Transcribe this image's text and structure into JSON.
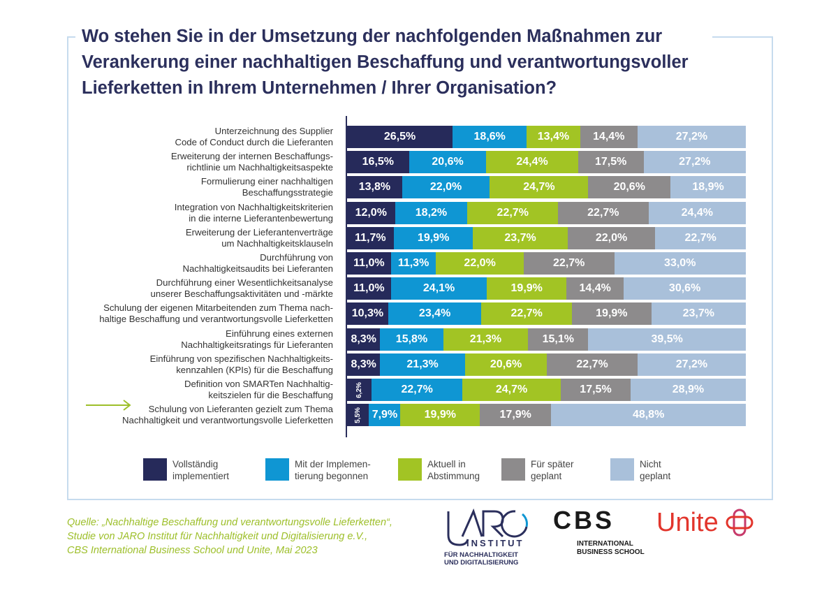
{
  "title": "Wo stehen Sie in der Umsetzung der nachfolgenden Maßnahmen zur Verankerung einer nachhaltigen Beschaffung und verantwortungsvoller Lieferketten in Ihrem Unternehmen / Ihrer Organisation?",
  "chart_data": {
    "type": "bar",
    "orientation": "horizontal-stacked-100",
    "categories": [
      "Unterzeichnung des Supplier\nCode of Conduct durch die Lieferanten",
      "Erweiterung der internen Beschaffungs-\nrichtlinie um Nachhaltigkeitsaspekte",
      "Formulierung einer nachhaltigen\nBeschaffungsstrategie",
      "Integration von Nachhaltigkeitskriterien\nin die interne Lieferantenbewertung",
      "Erweiterung der Lieferantenverträge\num Nachhaltigkeitsklauseln",
      "Durchführung von\nNachhaltigkeitsaudits bei Lieferanten",
      "Durchführung einer Wesentlichkeitsanalyse\nunserer Beschaffungsaktivitäten und -märkte",
      "Schulung der eigenen Mitarbeitenden zum Thema nach-\nhaltige Beschaffung und verantwortungsvolle Lieferketten",
      "Einführung eines externen\nNachhaltigkeitsratings für Lieferanten",
      "Einführung von spezifischen Nachhaltigkeits-\nkennzahlen (KPIs) für die Beschaffung",
      "Definition von SMARTen Nachhaltig-\nkeitszielen für die Beschaffung",
      "Schulung von Lieferanten gezielt zum Thema\nNachhaltigkeit und verantwortungsvolle Lieferketten"
    ],
    "series": [
      {
        "name": "Vollständig\nimplementiert",
        "color": "#262a5a",
        "values": [
          26.5,
          16.5,
          13.8,
          12.0,
          11.7,
          11.0,
          11.0,
          10.3,
          8.3,
          8.3,
          6.2,
          5.5
        ],
        "labels": [
          "26,5%",
          "16,5%",
          "13,8%",
          "12,0%",
          "11,7%",
          "11,0%",
          "11,0%",
          "10,3%",
          "8,3%",
          "8,3%",
          "6,2%",
          "5,5%"
        ]
      },
      {
        "name": "Mit der Implemen-\ntierung begonnen",
        "color": "#0f96d3",
        "values": [
          18.6,
          20.6,
          22.0,
          18.2,
          19.9,
          11.3,
          24.1,
          23.4,
          15.8,
          21.3,
          22.7,
          7.9
        ],
        "labels": [
          "18,6%",
          "20,6%",
          "22,0%",
          "18,2%",
          "19,9%",
          "11,3%",
          "24,1%",
          "23,4%",
          "15,8%",
          "21,3%",
          "22,7%",
          "7,9%"
        ]
      },
      {
        "name": "Aktuell in\nAbstimmung",
        "color": "#a2c424",
        "values": [
          13.4,
          24.4,
          24.7,
          22.7,
          23.7,
          22.0,
          19.9,
          22.7,
          21.3,
          20.6,
          24.7,
          19.9
        ],
        "labels": [
          "13,4%",
          "24,4%",
          "24,7%",
          "22,7%",
          "23,7%",
          "22,0%",
          "19,9%",
          "22,7%",
          "21,3%",
          "20,6%",
          "24,7%",
          "19,9%"
        ]
      },
      {
        "name": "Für später\ngeplant",
        "color": "#8d8b8c",
        "values": [
          14.4,
          17.5,
          20.6,
          22.7,
          22.0,
          22.7,
          14.4,
          19.9,
          15.1,
          22.7,
          17.5,
          17.9
        ],
        "labels": [
          "14,4%",
          "17,5%",
          "20,6%",
          "22,7%",
          "22,0%",
          "22,7%",
          "14,4%",
          "19,9%",
          "15,1%",
          "22,7%",
          "17,5%",
          "17,9%"
        ]
      },
      {
        "name": "Nicht\ngeplant",
        "color": "#a9c0da",
        "values": [
          27.2,
          27.2,
          18.9,
          24.4,
          22.7,
          33.0,
          30.6,
          23.7,
          39.5,
          27.2,
          28.9,
          48.8
        ],
        "labels": [
          "27,2%",
          "27,2%",
          "18,9%",
          "24,4%",
          "22,7%",
          "33,0%",
          "30,6%",
          "23,7%",
          "39,5%",
          "27,2%",
          "28,9%",
          "48,8%"
        ]
      }
    ],
    "legend_position": "bottom",
    "highlight_arrow_color": "#9dbf2a"
  },
  "source": "Quelle: „Nachhaltige Beschaffung und verantwortungsvolle Lieferketten“,\nStudie von JARO Institut für Nachhaltigkeit und Digitalisierung e.V.,\nCBS International Business School und Unite, Mai 2023",
  "logos": {
    "jaro": "JARO INSTITUT FÜR NACHHALTIGKEIT UND DIGITALISIERUNG",
    "cbs": "CBS INTERNATIONAL BUSINESS SCHOOL",
    "unite": "Unite"
  }
}
